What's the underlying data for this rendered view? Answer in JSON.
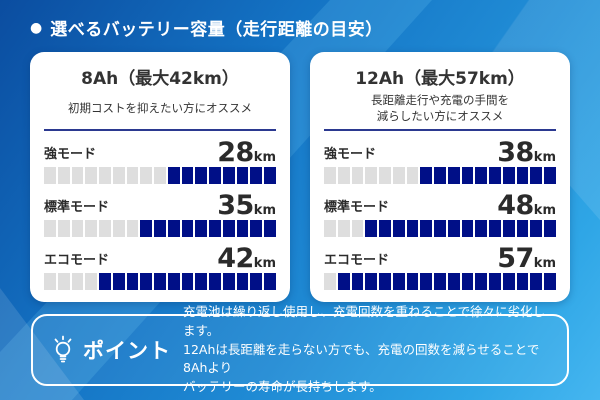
{
  "header": {
    "bullet": "●",
    "title": "選べるバッテリー容量（走行距離の目安）"
  },
  "cards": [
    {
      "title": "8Ah（最大42km）",
      "subtitle_lines": [
        "初期コストを抑えたい方にオススメ"
      ],
      "modes": [
        {
          "label": "強モード",
          "value": "28",
          "unit": "km",
          "gray": 9,
          "blue": 8
        },
        {
          "label": "標準モード",
          "value": "35",
          "unit": "km",
          "gray": 7,
          "blue": 10
        },
        {
          "label": "エコモード",
          "value": "42",
          "unit": "km",
          "gray": 4,
          "blue": 13
        }
      ]
    },
    {
      "title": "12Ah（最大57km）",
      "subtitle_lines": [
        "長距離走行や充電の手間を",
        "減らしたい方にオススメ"
      ],
      "modes": [
        {
          "label": "強モード",
          "value": "38",
          "unit": "km",
          "gray": 7,
          "blue": 10
        },
        {
          "label": "標準モード",
          "value": "48",
          "unit": "km",
          "gray": 3,
          "blue": 14
        },
        {
          "label": "エコモード",
          "value": "57",
          "unit": "km",
          "gray": 1,
          "blue": 16
        }
      ]
    }
  ],
  "point": {
    "icon": "lightbulb-icon",
    "label": "ポイント",
    "lines": [
      "充電池は繰り返し使用し、充電回数を重ねることで徐々に劣化します。",
      "12Ahは長距離を走らない方でも、充電の回数を減らせることで8Ahより",
      "バッテリーの寿命が長持ちします。"
    ]
  },
  "colors": {
    "segment_blue": "#000f87",
    "segment_gray": "#dedede",
    "divider": "#2b3990",
    "background_start": "#0b4da0",
    "background_end": "#45b6f0",
    "card_background": "#ffffff",
    "text_dark": "#2b2b2b",
    "text_light": "#ffffff"
  },
  "chart_data": [
    {
      "type": "bar",
      "title": "8Ah（最大42km）",
      "subtitle": "初期コストを抑えたい方にオススメ",
      "categories": [
        "強モード",
        "標準モード",
        "エコモード"
      ],
      "values": [
        28,
        35,
        42
      ],
      "unit": "km",
      "xlabel": "",
      "ylabel": "走行距離",
      "xlim": [
        0,
        60
      ],
      "segments_total": 17,
      "segments_filled": [
        8,
        10,
        13
      ],
      "legend": "none",
      "grid": false
    },
    {
      "type": "bar",
      "title": "12Ah（最大57km）",
      "subtitle": "長距離走行や充電の手間を減らしたい方にオススメ",
      "categories": [
        "強モード",
        "標準モード",
        "エコモード"
      ],
      "values": [
        38,
        48,
        57
      ],
      "unit": "km",
      "xlabel": "",
      "ylabel": "走行距離",
      "xlim": [
        0,
        60
      ],
      "segments_total": 17,
      "segments_filled": [
        10,
        14,
        16
      ],
      "legend": "none",
      "grid": false
    }
  ]
}
